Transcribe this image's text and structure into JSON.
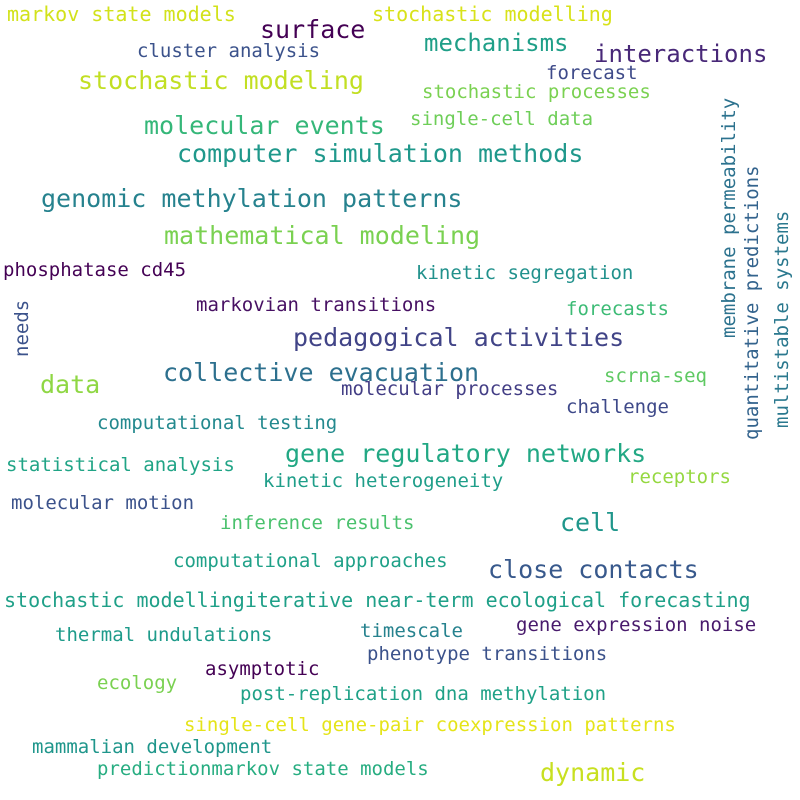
{
  "word_cloud": {
    "words": [
      {
        "text": "markov state models",
        "color": "#d2e21b"
      },
      {
        "text": "stochastic modelling",
        "color": "#d8e219"
      },
      {
        "text": "surface",
        "color": "#440154"
      },
      {
        "text": "mechanisms",
        "color": "#1f9f88"
      },
      {
        "text": "cluster analysis",
        "color": "#3b528b"
      },
      {
        "text": "interactions",
        "color": "#482878"
      },
      {
        "text": "stochastic modeling",
        "color": "#c2df23"
      },
      {
        "text": "forecast",
        "color": "#3e4a89"
      },
      {
        "text": "stochastic processes",
        "color": "#7ad151"
      },
      {
        "text": "single-cell data",
        "color": "#6ece58"
      },
      {
        "text": "molecular events",
        "color": "#35b779"
      },
      {
        "text": "computer simulation methods",
        "color": "#1f988b"
      },
      {
        "text": "genomic methylation patterns",
        "color": "#26828e"
      },
      {
        "text": "mathematical modeling",
        "color": "#7ad151"
      },
      {
        "text": "membrane permeability",
        "color": "#2c728e"
      },
      {
        "text": "quantitative predictions",
        "color": "#33638d"
      },
      {
        "text": "multistable systems",
        "color": "#2a788e"
      },
      {
        "text": "phosphatase cd45",
        "color": "#440154"
      },
      {
        "text": "kinetic segregation",
        "color": "#21918c"
      },
      {
        "text": "needs",
        "color": "#3b528b"
      },
      {
        "text": "markovian transitions",
        "color": "#471063"
      },
      {
        "text": "forecasts",
        "color": "#3cbb75"
      },
      {
        "text": "pedagogical activities",
        "color": "#414487"
      },
      {
        "text": "data",
        "color": "#8fd744"
      },
      {
        "text": "collective evacuation",
        "color": "#2d708e"
      },
      {
        "text": "scrna-seq",
        "color": "#5ec962"
      },
      {
        "text": "molecular processes",
        "color": "#433e85"
      },
      {
        "text": "challenge",
        "color": "#3e4989"
      },
      {
        "text": "computational testing",
        "color": "#23898e"
      },
      {
        "text": "gene regulatory networks",
        "color": "#22a884"
      },
      {
        "text": "statistical analysis",
        "color": "#20a486"
      },
      {
        "text": "kinetic heterogeneity",
        "color": "#1f9e89"
      },
      {
        "text": "receptors",
        "color": "#95d840"
      },
      {
        "text": "molecular motion",
        "color": "#3b528b"
      },
      {
        "text": "inference results",
        "color": "#4ac16d"
      },
      {
        "text": "cell",
        "color": "#1f968b"
      },
      {
        "text": "computational approaches",
        "color": "#1fa188"
      },
      {
        "text": "close contacts",
        "color": "#38598c"
      },
      {
        "text": "stochastic modellingiterative near-term ecological forecasting",
        "color": "#1fa088"
      },
      {
        "text": "thermal undulations",
        "color": "#1e9b8a"
      },
      {
        "text": "timescale",
        "color": "#26828e"
      },
      {
        "text": "gene expression noise",
        "color": "#481a6c"
      },
      {
        "text": "asymptotic",
        "color": "#440154"
      },
      {
        "text": "phenotype transitions",
        "color": "#3b528b"
      },
      {
        "text": "ecology",
        "color": "#7ad151"
      },
      {
        "text": "post-replication dna methylation",
        "color": "#1fa187"
      },
      {
        "text": "single-cell gene-pair coexpression patterns",
        "color": "#e5e419"
      },
      {
        "text": "mammalian development",
        "color": "#1f968b"
      },
      {
        "text": "predictionmarkov state models",
        "color": "#27ad81"
      },
      {
        "text": "dynamic",
        "color": "#c8e020"
      }
    ]
  }
}
